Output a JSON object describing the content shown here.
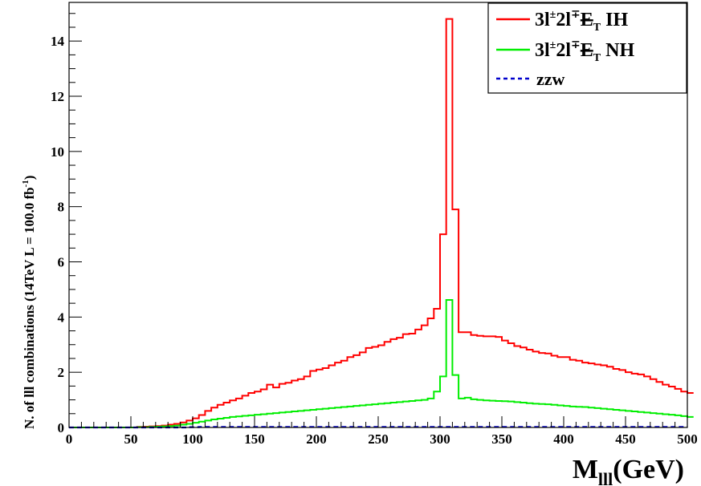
{
  "chart_data": {
    "type": "line",
    "style": "step",
    "xlabel": "M",
    "xlabel_sub": "lll",
    "xlabel_unit": "(GeV)",
    "ylabel": "N. of lll combinations  (14TeV  L = 100.0 fb",
    "ylabel_sup": "-1",
    "ylabel_close": ")",
    "xlim": [
      0,
      500
    ],
    "ylim": [
      0,
      15.4
    ],
    "xticks": [
      0,
      50,
      100,
      150,
      200,
      250,
      300,
      350,
      400,
      450,
      500
    ],
    "xtick_labels": [
      "0",
      "50",
      "100",
      "150",
      "200",
      "250",
      "300",
      "350",
      "400",
      "450",
      "500"
    ],
    "yticks": [
      0,
      2,
      4,
      6,
      8,
      10,
      12,
      14
    ],
    "ytick_labels": [
      "0",
      "2",
      "4",
      "6",
      "8",
      "10",
      "12",
      "14"
    ],
    "bin_width": 5,
    "grid": false,
    "legend_position": "top-right",
    "series": [
      {
        "key": "ih",
        "legend": {
          "a": "3l",
          "sup1": "±",
          "b": "2l",
          "sup2": "∓",
          "c": "E",
          "sub": "T",
          "d": " IH"
        },
        "color": "#ff0000",
        "dash": "solid",
        "values": [
          0,
          0,
          0,
          0,
          0,
          0,
          0,
          0,
          0,
          0,
          0,
          0.02,
          0.03,
          0.04,
          0.05,
          0.07,
          0.1,
          0.13,
          0.18,
          0.25,
          0.33,
          0.45,
          0.6,
          0.72,
          0.82,
          0.9,
          0.98,
          1.05,
          1.15,
          1.25,
          1.3,
          1.38,
          1.55,
          1.45,
          1.58,
          1.62,
          1.7,
          1.75,
          1.85,
          2.05,
          2.1,
          2.15,
          2.25,
          2.35,
          2.42,
          2.55,
          2.62,
          2.72,
          2.88,
          2.92,
          2.98,
          3.1,
          3.2,
          3.25,
          3.38,
          3.4,
          3.55,
          3.7,
          3.95,
          4.3,
          7.0,
          14.8,
          7.9,
          3.45,
          3.45,
          3.35,
          3.32,
          3.3,
          3.3,
          3.28,
          3.15,
          3.05,
          2.95,
          2.9,
          2.82,
          2.75,
          2.7,
          2.68,
          2.6,
          2.55,
          2.55,
          2.45,
          2.42,
          2.35,
          2.32,
          2.28,
          2.25,
          2.2,
          2.12,
          2.08,
          2.0,
          1.95,
          1.92,
          1.85,
          1.75,
          1.65,
          1.55,
          1.48,
          1.4,
          1.3,
          1.25
        ]
      },
      {
        "key": "nh",
        "legend": {
          "a": "3l",
          "sup1": "±",
          "b": "2l",
          "sup2": "∓",
          "c": "E",
          "sub": "T",
          "d": " NH"
        },
        "color": "#00ee00",
        "dash": "solid",
        "values": [
          0,
          0,
          0,
          0,
          0,
          0,
          0,
          0,
          0,
          0,
          0,
          0.01,
          0.01,
          0.02,
          0.03,
          0.04,
          0.05,
          0.07,
          0.1,
          0.13,
          0.17,
          0.21,
          0.25,
          0.29,
          0.32,
          0.35,
          0.38,
          0.4,
          0.42,
          0.44,
          0.46,
          0.48,
          0.5,
          0.52,
          0.54,
          0.56,
          0.58,
          0.6,
          0.62,
          0.64,
          0.66,
          0.68,
          0.7,
          0.72,
          0.74,
          0.76,
          0.78,
          0.8,
          0.82,
          0.84,
          0.86,
          0.88,
          0.9,
          0.92,
          0.94,
          0.96,
          0.98,
          1.0,
          1.05,
          1.3,
          1.85,
          4.62,
          1.9,
          1.05,
          1.08,
          1.02,
          1.0,
          0.98,
          0.97,
          0.96,
          0.95,
          0.94,
          0.92,
          0.9,
          0.88,
          0.86,
          0.85,
          0.84,
          0.82,
          0.8,
          0.78,
          0.76,
          0.75,
          0.74,
          0.72,
          0.7,
          0.68,
          0.66,
          0.64,
          0.62,
          0.6,
          0.58,
          0.56,
          0.54,
          0.52,
          0.5,
          0.48,
          0.46,
          0.44,
          0.41,
          0.38
        ]
      },
      {
        "key": "zzw",
        "legend": {
          "a": "zzw"
        },
        "color": "#0000cc",
        "dash": "dashed",
        "values": [
          0,
          0,
          0,
          0,
          0,
          0,
          0,
          0,
          0,
          0,
          0,
          0,
          0,
          0,
          0,
          0,
          0,
          0,
          0,
          0.01,
          0.01,
          0.02,
          0.02,
          0.02,
          0.02,
          0.02,
          0.02,
          0.02,
          0.02,
          0.02,
          0.02,
          0.02,
          0.02,
          0.02,
          0.02,
          0.02,
          0.02,
          0.02,
          0.02,
          0.02,
          0.02,
          0.02,
          0.02,
          0.02,
          0.02,
          0.02,
          0.02,
          0.02,
          0.02,
          0.02,
          0.02,
          0.02,
          0.02,
          0.02,
          0.02,
          0.02,
          0.02,
          0.02,
          0.02,
          0.02,
          0.02,
          0.02,
          0.02,
          0.02,
          0.02,
          0.02,
          0.02,
          0.02,
          0.02,
          0.02,
          0.02,
          0.02,
          0.02,
          0.02,
          0.02,
          0.02,
          0.02,
          0.02,
          0.02,
          0.02,
          0.02,
          0.02,
          0.02,
          0.02,
          0.02,
          0.02,
          0.02,
          0.02,
          0.02,
          0.02,
          0.02,
          0.02,
          0.02,
          0.02,
          0.02,
          0.02,
          0.02,
          0.02,
          0.02,
          0.02
        ]
      }
    ]
  }
}
